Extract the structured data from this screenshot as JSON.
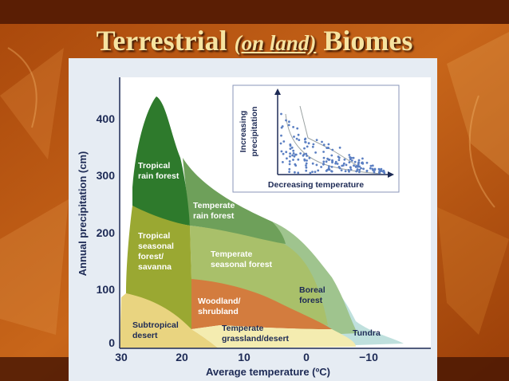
{
  "title": {
    "part1": "Terrestrial ",
    "part2": "(on land)",
    "part3": " Biomes"
  },
  "diagram": {
    "y_axis_label": "Annual precipitation (cm)",
    "x_axis_label": "Average temperature (ºC)",
    "y_ticks": [
      "0",
      "100",
      "200",
      "300",
      "400"
    ],
    "x_ticks": [
      "30",
      "20",
      "10",
      "0",
      "−10"
    ],
    "biomes": [
      {
        "line1": "Tropical",
        "line2": "rain forest",
        "color": "#2e7a2c"
      },
      {
        "line1": "Temperate",
        "line2": "rain forest",
        "color": "#6ea05a"
      },
      {
        "line1": "Tropical",
        "line2": "seasonal",
        "line3": "forest/",
        "line4": "savanna",
        "color": "#9aa832"
      },
      {
        "line1": "Temperate",
        "line2": "seasonal forest",
        "color": "#a9c06a"
      },
      {
        "line1": "Woodland/",
        "line2": "shrubland",
        "color": "#d37c3e"
      },
      {
        "line1": "Boreal",
        "line2": "forest",
        "color": "#9fc48e"
      },
      {
        "line1": "Subtropical",
        "line2": "desert",
        "color": "#e9d480"
      },
      {
        "line1": "Temperate",
        "line2": "grassland/desert",
        "color": "#f4ecb0"
      },
      {
        "line1": "Tundra",
        "color": "#bfe0dd"
      }
    ],
    "inset": {
      "y_label_line1": "Increasing",
      "y_label_line2": "precipitation",
      "x_label": "Decreasing temperature"
    }
  }
}
